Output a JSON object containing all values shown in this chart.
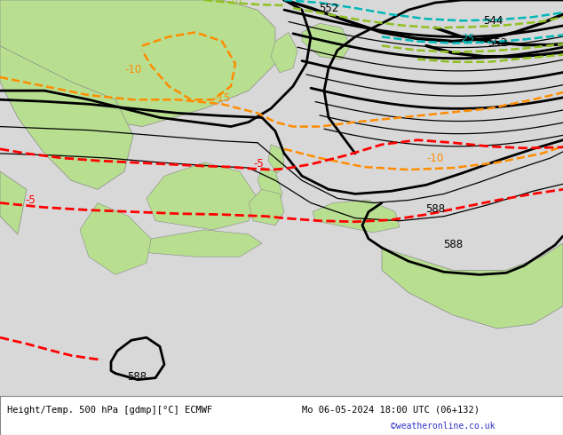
{
  "title_left": "Height/Temp. 500 hPa [gdmp][°C] ECMWF",
  "title_right": "Mo 06-05-2024 18:00 UTC (06+132)",
  "watermark": "©weatheronline.co.uk",
  "bg_color": "#d8d8d8",
  "land_green": "#b8df90",
  "land_gray": "#c0c0c0",
  "fig_width": 6.34,
  "fig_height": 4.9,
  "dpi": 100,
  "colors": {
    "black": "#000000",
    "orange": "#ff8c00",
    "red": "#ff0000",
    "cyan": "#00b8b8",
    "yellow_green": "#90c020",
    "gray_coast": "#999999",
    "white": "#ffffff"
  }
}
